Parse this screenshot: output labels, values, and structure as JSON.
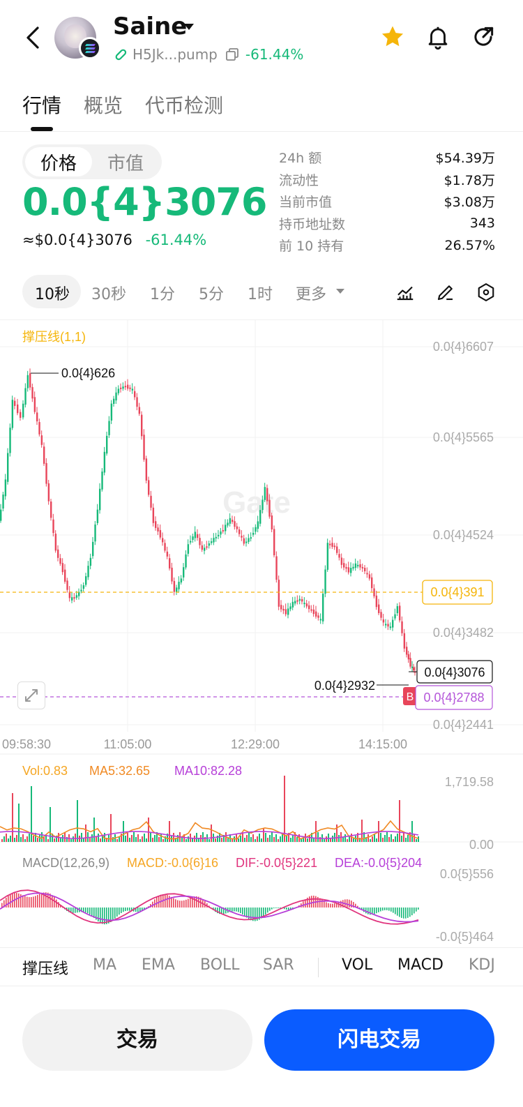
{
  "header": {
    "token_name": "Saine",
    "address": "H5Jk...pump",
    "change_pct": "-61.44%"
  },
  "tabs": [
    {
      "label": "行情",
      "active": true
    },
    {
      "label": "概览",
      "active": false
    },
    {
      "label": "代币检测",
      "active": false
    }
  ],
  "price_toggle": {
    "price": "价格",
    "mcap": "市值"
  },
  "price": {
    "big": "0.0{4}3076",
    "usd": "≈$0.0{4}3076",
    "change": "-61.44%"
  },
  "stats": [
    {
      "label": "24h  额",
      "value": "$54.39万"
    },
    {
      "label": "流动性",
      "value": "$1.78万"
    },
    {
      "label": "当前市值",
      "value": "$3.08万"
    },
    {
      "label": "持币地址数",
      "value": "343"
    },
    {
      "label": "前 10 持有",
      "value": "26.57%"
    }
  ],
  "intervals": {
    "items": [
      "10秒",
      "30秒",
      "1分",
      "5分",
      "1时"
    ],
    "more": "更多",
    "selected": "10秒"
  },
  "chart": {
    "sr_label": "撑压线(1,1)",
    "watermark": "Gate",
    "price_axis": [
      "0.0{4}6607",
      "0.0{4}5565",
      "0.0{4}4524",
      "0.0{4}3482",
      "0.0{4}2441"
    ],
    "time_axis": [
      "09:58:30",
      "11:05:00",
      "12:29:00",
      "14:15:00"
    ],
    "high_label": "0.0{4}626",
    "low_label": "0.0{4}2932",
    "support_line": "0.0{4}391",
    "current_price": "0.0{4}3076",
    "dashed_price": "0.0{4}2788",
    "b_marker": "B"
  },
  "volume": {
    "vol": "Vol:0.83",
    "ma5": "MA5:32.65",
    "ma10": "MA10:82.28",
    "axis_top": "1,719.58",
    "axis_bottom": "0.00"
  },
  "macd": {
    "title": "MACD(12,26,9)",
    "macd": "MACD:-0.0{6}16",
    "dif": "DIF:-0.0{5}221",
    "dea": "DEA:-0.0{5}204",
    "axis_top": "0.0{5}556",
    "axis_bottom": "-0.0{5}464"
  },
  "indicator_tabs": [
    "撑压线",
    "MA",
    "EMA",
    "BOLL",
    "SAR",
    "VOL",
    "MACD",
    "KDJ"
  ],
  "actions": {
    "trade": "交易",
    "flash_trade": "闪电交易"
  },
  "colors": {
    "up": "#16b979",
    "down": "#e8455a",
    "accent": "#0a5cff",
    "support": "#f5b50a",
    "star": "#f5b50a"
  }
}
